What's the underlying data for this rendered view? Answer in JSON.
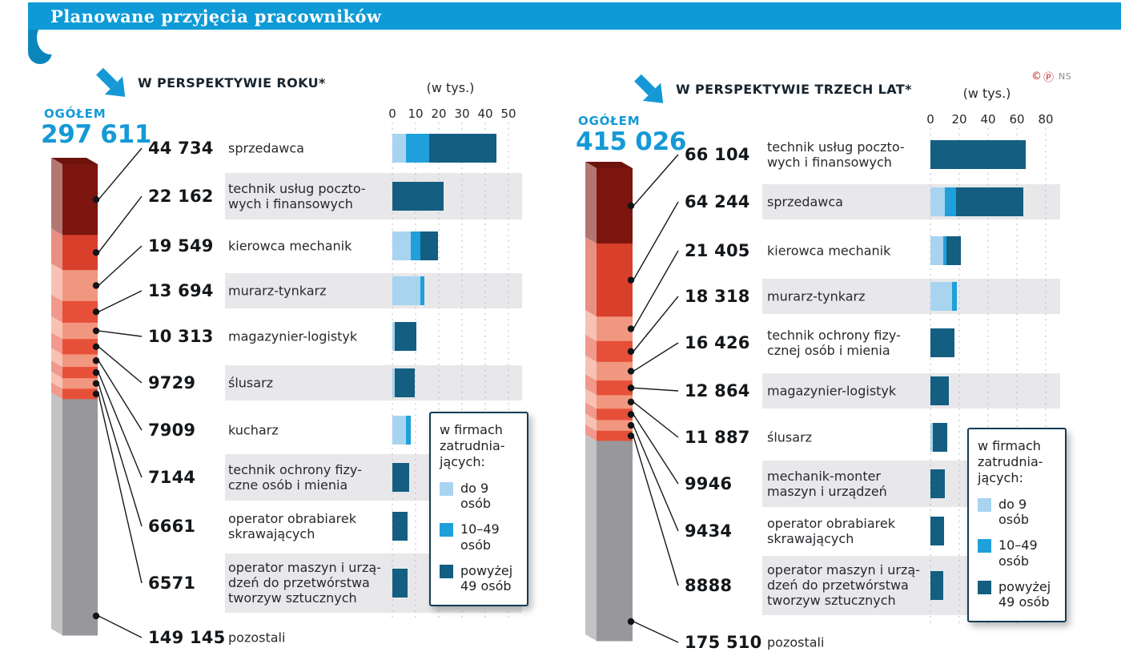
{
  "title": {
    "text": "Planowane przyjęcia pracowników"
  },
  "credits": {
    "c": "©",
    "p": "Ⓟ",
    "agency": "NS"
  },
  "legend": {
    "heading": "w firmach\nzatrudnia-\njących:",
    "items": [
      {
        "label": "do 9 osób",
        "color": "#a8d4f0"
      },
      {
        "label": "10–49\nosób",
        "color": "#1fa0da"
      },
      {
        "label": "powyżej\n49 osób",
        "color": "#145e81"
      }
    ]
  },
  "colors": {
    "accent": "#1599d6",
    "banner": "#0e9ad6",
    "stripe": "#e8e8ea",
    "grid": "#b9bdc2",
    "tower": [
      "#7d150f",
      "#d8402c",
      "#f2977f",
      "#e65039",
      "#f2977f",
      "#e65039",
      "#f2977f",
      "#e65039",
      "#f2977f",
      "#e65039",
      "#98989c"
    ]
  },
  "chart_data": [
    {
      "type": "bar",
      "orientation": "horizontal",
      "stacked": true,
      "heading": "W PERSPEKTYWIE ROKU*",
      "total_label": "OGÓŁEM",
      "total_value": "297 611",
      "axis_title": "(w tys.)",
      "units": "thousands of people",
      "axis_ticks": [
        0,
        10,
        20,
        30,
        40,
        50
      ],
      "series_order": [
        "do 9 osób",
        "10–49 osób",
        "powyżej 49 osób"
      ],
      "rows": [
        {
          "value": "44 734",
          "label": "sprzedawca",
          "segments": [
            6,
            10,
            28.7
          ]
        },
        {
          "value": "22 162",
          "label": "technik usług poczto-\nwych i finansowych",
          "segments": [
            0,
            0,
            22.2
          ]
        },
        {
          "value": "19 549",
          "label": "kierowca mechanik",
          "segments": [
            8,
            4,
            7.5
          ]
        },
        {
          "value": "13 694",
          "label": "murarz-tynkarz",
          "segments": [
            12,
            1.7,
            0
          ]
        },
        {
          "value": "10 313",
          "label": "magazynier-logistyk",
          "segments": [
            1,
            0,
            9.3
          ]
        },
        {
          "value": "9729",
          "label": "ślusarz",
          "segments": [
            1,
            0,
            8.7
          ]
        },
        {
          "value": "7909",
          "label": "kucharz",
          "segments": [
            6,
            1.9,
            0
          ]
        },
        {
          "value": "7144",
          "label": "technik ochrony fizy-\nczne osób i mienia",
          "segments": [
            0,
            0,
            7.1
          ]
        },
        {
          "value": "6661",
          "label": "operator obrabiarek\nskrawających",
          "segments": [
            0,
            0,
            6.7
          ]
        },
        {
          "value": "6571",
          "label": "operator maszyn i urzą-\ndzeń do przetwórstwa\ntworzyw sztucznych",
          "segments": [
            0,
            0,
            6.6
          ]
        },
        {
          "value": "149 145",
          "label": "pozostali",
          "segments": []
        }
      ]
    },
    {
      "type": "bar",
      "orientation": "horizontal",
      "stacked": true,
      "heading": "W PERSPEKTYWIE TRZECH LAT*",
      "total_label": "OGÓŁEM",
      "total_value": "415 026",
      "axis_title": "(w tys.)",
      "units": "thousands of people",
      "axis_ticks": [
        0,
        20,
        40,
        60,
        80
      ],
      "series_order": [
        "do 9 osób",
        "10–49 osób",
        "powyżej 49 osób"
      ],
      "rows": [
        {
          "value": "66 104",
          "label": "technik usług poczto-\nwych i finansowych",
          "segments": [
            0,
            0,
            66.1
          ]
        },
        {
          "value": "64 244",
          "label": "sprzedawca",
          "segments": [
            10,
            8,
            46.2
          ]
        },
        {
          "value": "21 405",
          "label": "kierowca mechanik",
          "segments": [
            9,
            2,
            10.4
          ]
        },
        {
          "value": "18 318",
          "label": "murarz-tynkarz",
          "segments": [
            15,
            3.3,
            0
          ]
        },
        {
          "value": "16 426",
          "label": "technik ochrony fizy-\ncznej osób i mienia",
          "segments": [
            0,
            0,
            16.4
          ]
        },
        {
          "value": "12 864",
          "label": "magazynier-logistyk",
          "segments": [
            0,
            0,
            12.9
          ]
        },
        {
          "value": "11 887",
          "label": "ślusarz",
          "segments": [
            1.5,
            0,
            10.4
          ]
        },
        {
          "value": "9946",
          "label": "mechanik-monter\nmaszyn i urządzeń",
          "segments": [
            0,
            0,
            9.9
          ]
        },
        {
          "value": "9434",
          "label": "operator obrabiarek\nskrawających",
          "segments": [
            0,
            0,
            9.4
          ]
        },
        {
          "value": "8888",
          "label": "operator maszyn i urzą-\ndzeń do przetwórstwa\ntworzyw sztucznych",
          "segments": [
            0,
            0,
            8.9
          ]
        },
        {
          "value": "175 510",
          "label": "pozostali",
          "segments": []
        }
      ]
    }
  ]
}
